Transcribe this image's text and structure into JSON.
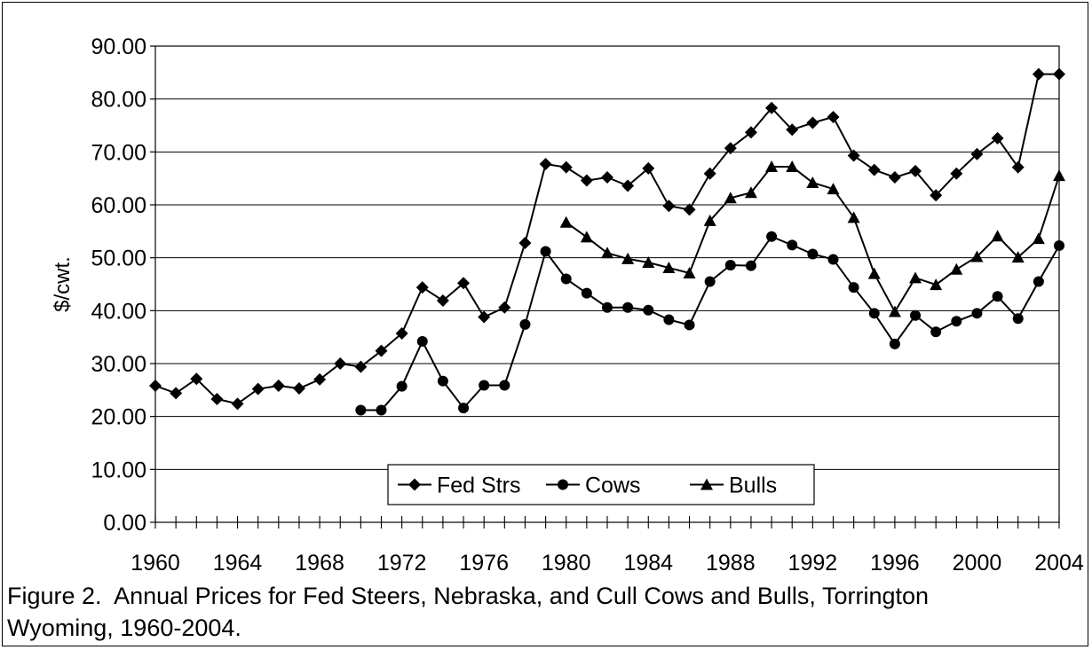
{
  "chart_data": {
    "type": "line",
    "title": "",
    "xlabel": "",
    "ylabel": "$/cwt.",
    "xlim": [
      1960,
      2004
    ],
    "ylim": [
      0,
      90
    ],
    "y_ticks": [
      "0.00",
      "10.00",
      "20.00",
      "30.00",
      "40.00",
      "50.00",
      "60.00",
      "70.00",
      "80.00",
      "90.00"
    ],
    "x_ticks": [
      "1960",
      "1964",
      "1968",
      "1972",
      "1976",
      "1980",
      "1984",
      "1988",
      "1992",
      "1996",
      "2000",
      "2004"
    ],
    "grid": true,
    "legend_position": "bottom-center",
    "x": [
      1960,
      1961,
      1962,
      1963,
      1964,
      1965,
      1966,
      1967,
      1968,
      1969,
      1970,
      1971,
      1972,
      1973,
      1974,
      1975,
      1976,
      1977,
      1978,
      1979,
      1980,
      1981,
      1982,
      1983,
      1984,
      1985,
      1986,
      1987,
      1988,
      1989,
      1990,
      1991,
      1992,
      1993,
      1994,
      1995,
      1996,
      1997,
      1998,
      1999,
      2000,
      2001,
      2002,
      2003,
      2004
    ],
    "series": [
      {
        "name": "Fed Strs",
        "marker": "diamond",
        "values": [
          25.8,
          24.4,
          27.1,
          23.3,
          22.4,
          25.2,
          25.8,
          25.3,
          27.0,
          30.0,
          29.4,
          32.4,
          35.7,
          44.4,
          41.9,
          45.2,
          38.8,
          40.6,
          52.8,
          67.7,
          67.1,
          64.6,
          65.2,
          63.6,
          66.9,
          59.8,
          59.1,
          65.9,
          70.7,
          73.7,
          78.3,
          74.2,
          75.5,
          76.6,
          69.3,
          66.6,
          65.2,
          66.4,
          61.8,
          65.9,
          69.6,
          72.6,
          67.1,
          84.7,
          84.7
        ]
      },
      {
        "name": "Cows",
        "marker": "circle",
        "values": [
          null,
          null,
          null,
          null,
          null,
          null,
          null,
          null,
          null,
          null,
          21.2,
          21.2,
          25.7,
          34.2,
          26.7,
          21.6,
          25.9,
          25.9,
          37.4,
          51.2,
          46.0,
          43.3,
          40.6,
          40.6,
          40.1,
          38.3,
          37.3,
          45.5,
          48.6,
          48.5,
          54.0,
          52.4,
          50.7,
          49.7,
          44.4,
          39.5,
          33.7,
          39.1,
          36.0,
          38.0,
          39.5,
          42.7,
          38.5,
          45.5,
          52.3
        ]
      },
      {
        "name": "Bulls",
        "marker": "triangle",
        "values": [
          null,
          null,
          null,
          null,
          null,
          null,
          null,
          null,
          null,
          null,
          null,
          null,
          null,
          null,
          null,
          null,
          null,
          null,
          null,
          null,
          56.7,
          53.9,
          50.9,
          49.8,
          49.1,
          48.1,
          47.1,
          57.0,
          61.3,
          62.3,
          67.2,
          67.2,
          64.2,
          63.0,
          57.6,
          47.0,
          39.8,
          46.2,
          44.9,
          47.8,
          50.2,
          54.1,
          50.1,
          53.6,
          65.5
        ]
      }
    ],
    "caption": {
      "line1": "Figure 2.  Annual Prices for Fed Steers, Nebraska, and Cull Cows and Bulls, Torrington",
      "line2": "Wyoming, 1960-2004."
    }
  }
}
